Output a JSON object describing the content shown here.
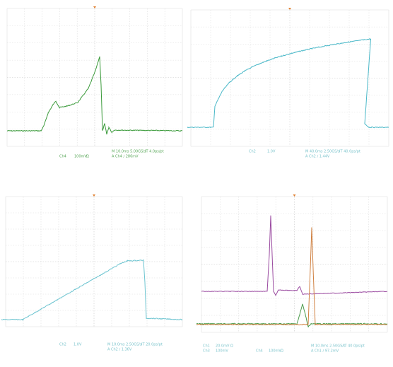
{
  "panels": [
    {
      "readouts": [
        "Ch4",
        "100mV",
        "Ω",
        "M 10.0ms 5.00GS/s",
        "IT 4.0ps/pt",
        "A Ch4 ∕ 286mV"
      ]
    },
    {
      "readouts": [
        "Ch2",
        "1.0V",
        "M 40.0ms 2.50GS/s",
        "IT 40.0ps/pt",
        "A Ch2 ∕ 1.44V"
      ]
    },
    {
      "readouts": [
        "Ch2",
        "1.0V",
        "M 10.0ms 2.50GS/s",
        "IT 20.0ps/pt",
        "A Ch2 ∕ 1.36V"
      ]
    },
    {
      "readouts": [
        "Ch1",
        "20.0mV Ω",
        "Ch3",
        "100mV",
        "Ch4",
        "100mV",
        "Ω",
        "M 10.0ms 2.50GS/s",
        "IT 40.0ps/pt",
        "A Ch1 ∕ 97.2mV"
      ]
    }
  ]
}
